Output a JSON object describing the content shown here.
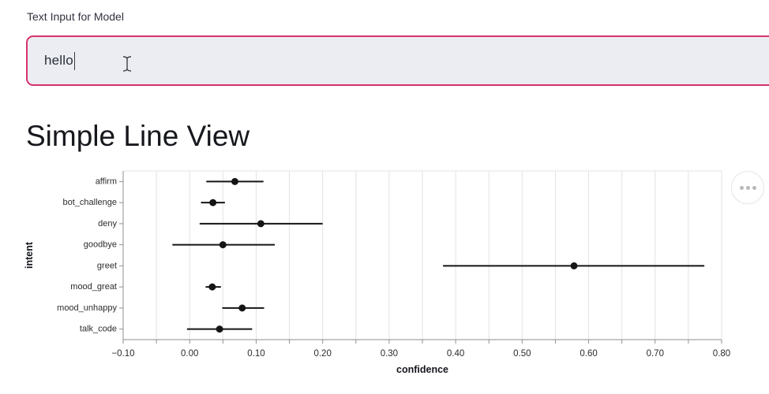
{
  "colors": {
    "accent": "#d6336c",
    "input_bg": "#ebedf2",
    "text_dark": "#31333f",
    "heading": "#16181d",
    "grid": "#e3e3e3",
    "axis": "#8f8f8f",
    "mark": "#151515",
    "chart_text": "#2b2b2b",
    "chart_title": "#14161d",
    "dots": "#b9b9b9",
    "button_border": "#e7e7e7"
  },
  "input_section": {
    "label": "Text Input for Model",
    "value": "hello"
  },
  "heading": "Simple Line View",
  "actions_menu": {
    "icon": "ellipsis-icon"
  },
  "chart_data": {
    "type": "scatter",
    "subtype": "point-with-error-bars",
    "orientation": "horizontal",
    "xlabel": "confidence",
    "ylabel": "intent",
    "xlim": [
      -0.1,
      0.8
    ],
    "x_minor_step": 0.05,
    "grid": true,
    "x_tick_values": [
      -0.1,
      0.0,
      0.1,
      0.2,
      0.3,
      0.4,
      0.5,
      0.6,
      0.7,
      0.8
    ],
    "x_tick_labels": [
      "−0.10",
      "0.00",
      "0.10",
      "0.20",
      "0.30",
      "0.40",
      "0.50",
      "0.60",
      "0.70",
      "0.80"
    ],
    "categories": [
      "affirm",
      "bot_challenge",
      "deny",
      "goodbye",
      "greet",
      "mood_great",
      "mood_unhappy",
      "talk_code"
    ],
    "points": [
      {
        "intent": "affirm",
        "confidence": 0.068,
        "ci_low": 0.025,
        "ci_high": 0.111
      },
      {
        "intent": "bot_challenge",
        "confidence": 0.035,
        "ci_low": 0.017,
        "ci_high": 0.053
      },
      {
        "intent": "deny",
        "confidence": 0.107,
        "ci_low": 0.015,
        "ci_high": 0.2
      },
      {
        "intent": "goodbye",
        "confidence": 0.05,
        "ci_low": -0.026,
        "ci_high": 0.128
      },
      {
        "intent": "greet",
        "confidence": 0.578,
        "ci_low": 0.381,
        "ci_high": 0.774
      },
      {
        "intent": "mood_great",
        "confidence": 0.034,
        "ci_low": 0.024,
        "ci_high": 0.047
      },
      {
        "intent": "mood_unhappy",
        "confidence": 0.079,
        "ci_low": 0.049,
        "ci_high": 0.112
      },
      {
        "intent": "talk_code",
        "confidence": 0.045,
        "ci_low": -0.004,
        "ci_high": 0.094
      }
    ]
  }
}
